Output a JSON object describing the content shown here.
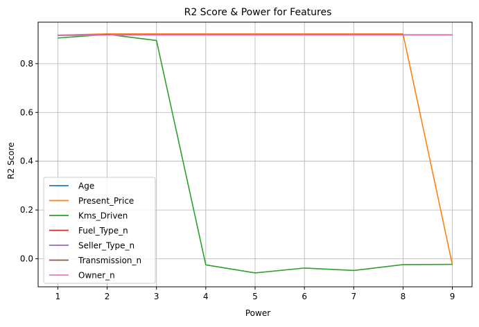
{
  "chart_data": {
    "type": "line",
    "title": "R2 Score & Power for Features",
    "xlabel": "Power",
    "ylabel": "R2 Score",
    "x": [
      1,
      2,
      3,
      4,
      5,
      6,
      7,
      8,
      9
    ],
    "xticks": [
      1,
      2,
      3,
      4,
      5,
      6,
      7,
      8,
      9
    ],
    "yticks": [
      0.0,
      0.2,
      0.4,
      0.6,
      0.8
    ],
    "ytick_labels": [
      "0.0",
      "0.2",
      "0.4",
      "0.6",
      "0.8"
    ],
    "xlim": [
      0.6,
      9.4
    ],
    "ylim": [
      -0.115,
      0.97
    ],
    "grid": true,
    "legend_position": "lower-left",
    "series": [
      {
        "name": "Age",
        "color": "#1f77b4",
        "values": [
          0.916,
          0.92,
          0.918,
          0.918,
          0.918,
          0.918,
          0.918,
          0.918,
          0.918
        ]
      },
      {
        "name": "Present_Price",
        "color": "#ff7f0e",
        "values": [
          0.917,
          0.922,
          0.922,
          0.922,
          0.922,
          0.922,
          0.922,
          0.922,
          -0.024
        ]
      },
      {
        "name": "Kms_Driven",
        "color": "#2ca02c",
        "values": [
          0.905,
          0.92,
          0.895,
          -0.025,
          -0.058,
          -0.038,
          -0.048,
          -0.024,
          -0.023
        ]
      },
      {
        "name": "Fuel_Type_n",
        "color": "#d62728",
        "values": [
          0.916,
          0.918,
          0.918,
          0.918,
          0.918,
          0.918,
          0.918,
          0.918,
          0.918
        ]
      },
      {
        "name": "Seller_Type_n",
        "color": "#9467bd",
        "values": [
          0.916,
          0.917,
          0.917,
          0.917,
          0.917,
          0.917,
          0.917,
          0.917,
          0.917
        ]
      },
      {
        "name": "Transmission_n",
        "color": "#8c564b",
        "values": [
          0.916,
          0.917,
          0.917,
          0.917,
          0.917,
          0.917,
          0.917,
          0.917,
          0.917
        ]
      },
      {
        "name": "Owner_n",
        "color": "#e377c2",
        "values": [
          0.916,
          0.917,
          0.917,
          0.917,
          0.917,
          0.917,
          0.917,
          0.917,
          0.917
        ]
      }
    ]
  }
}
